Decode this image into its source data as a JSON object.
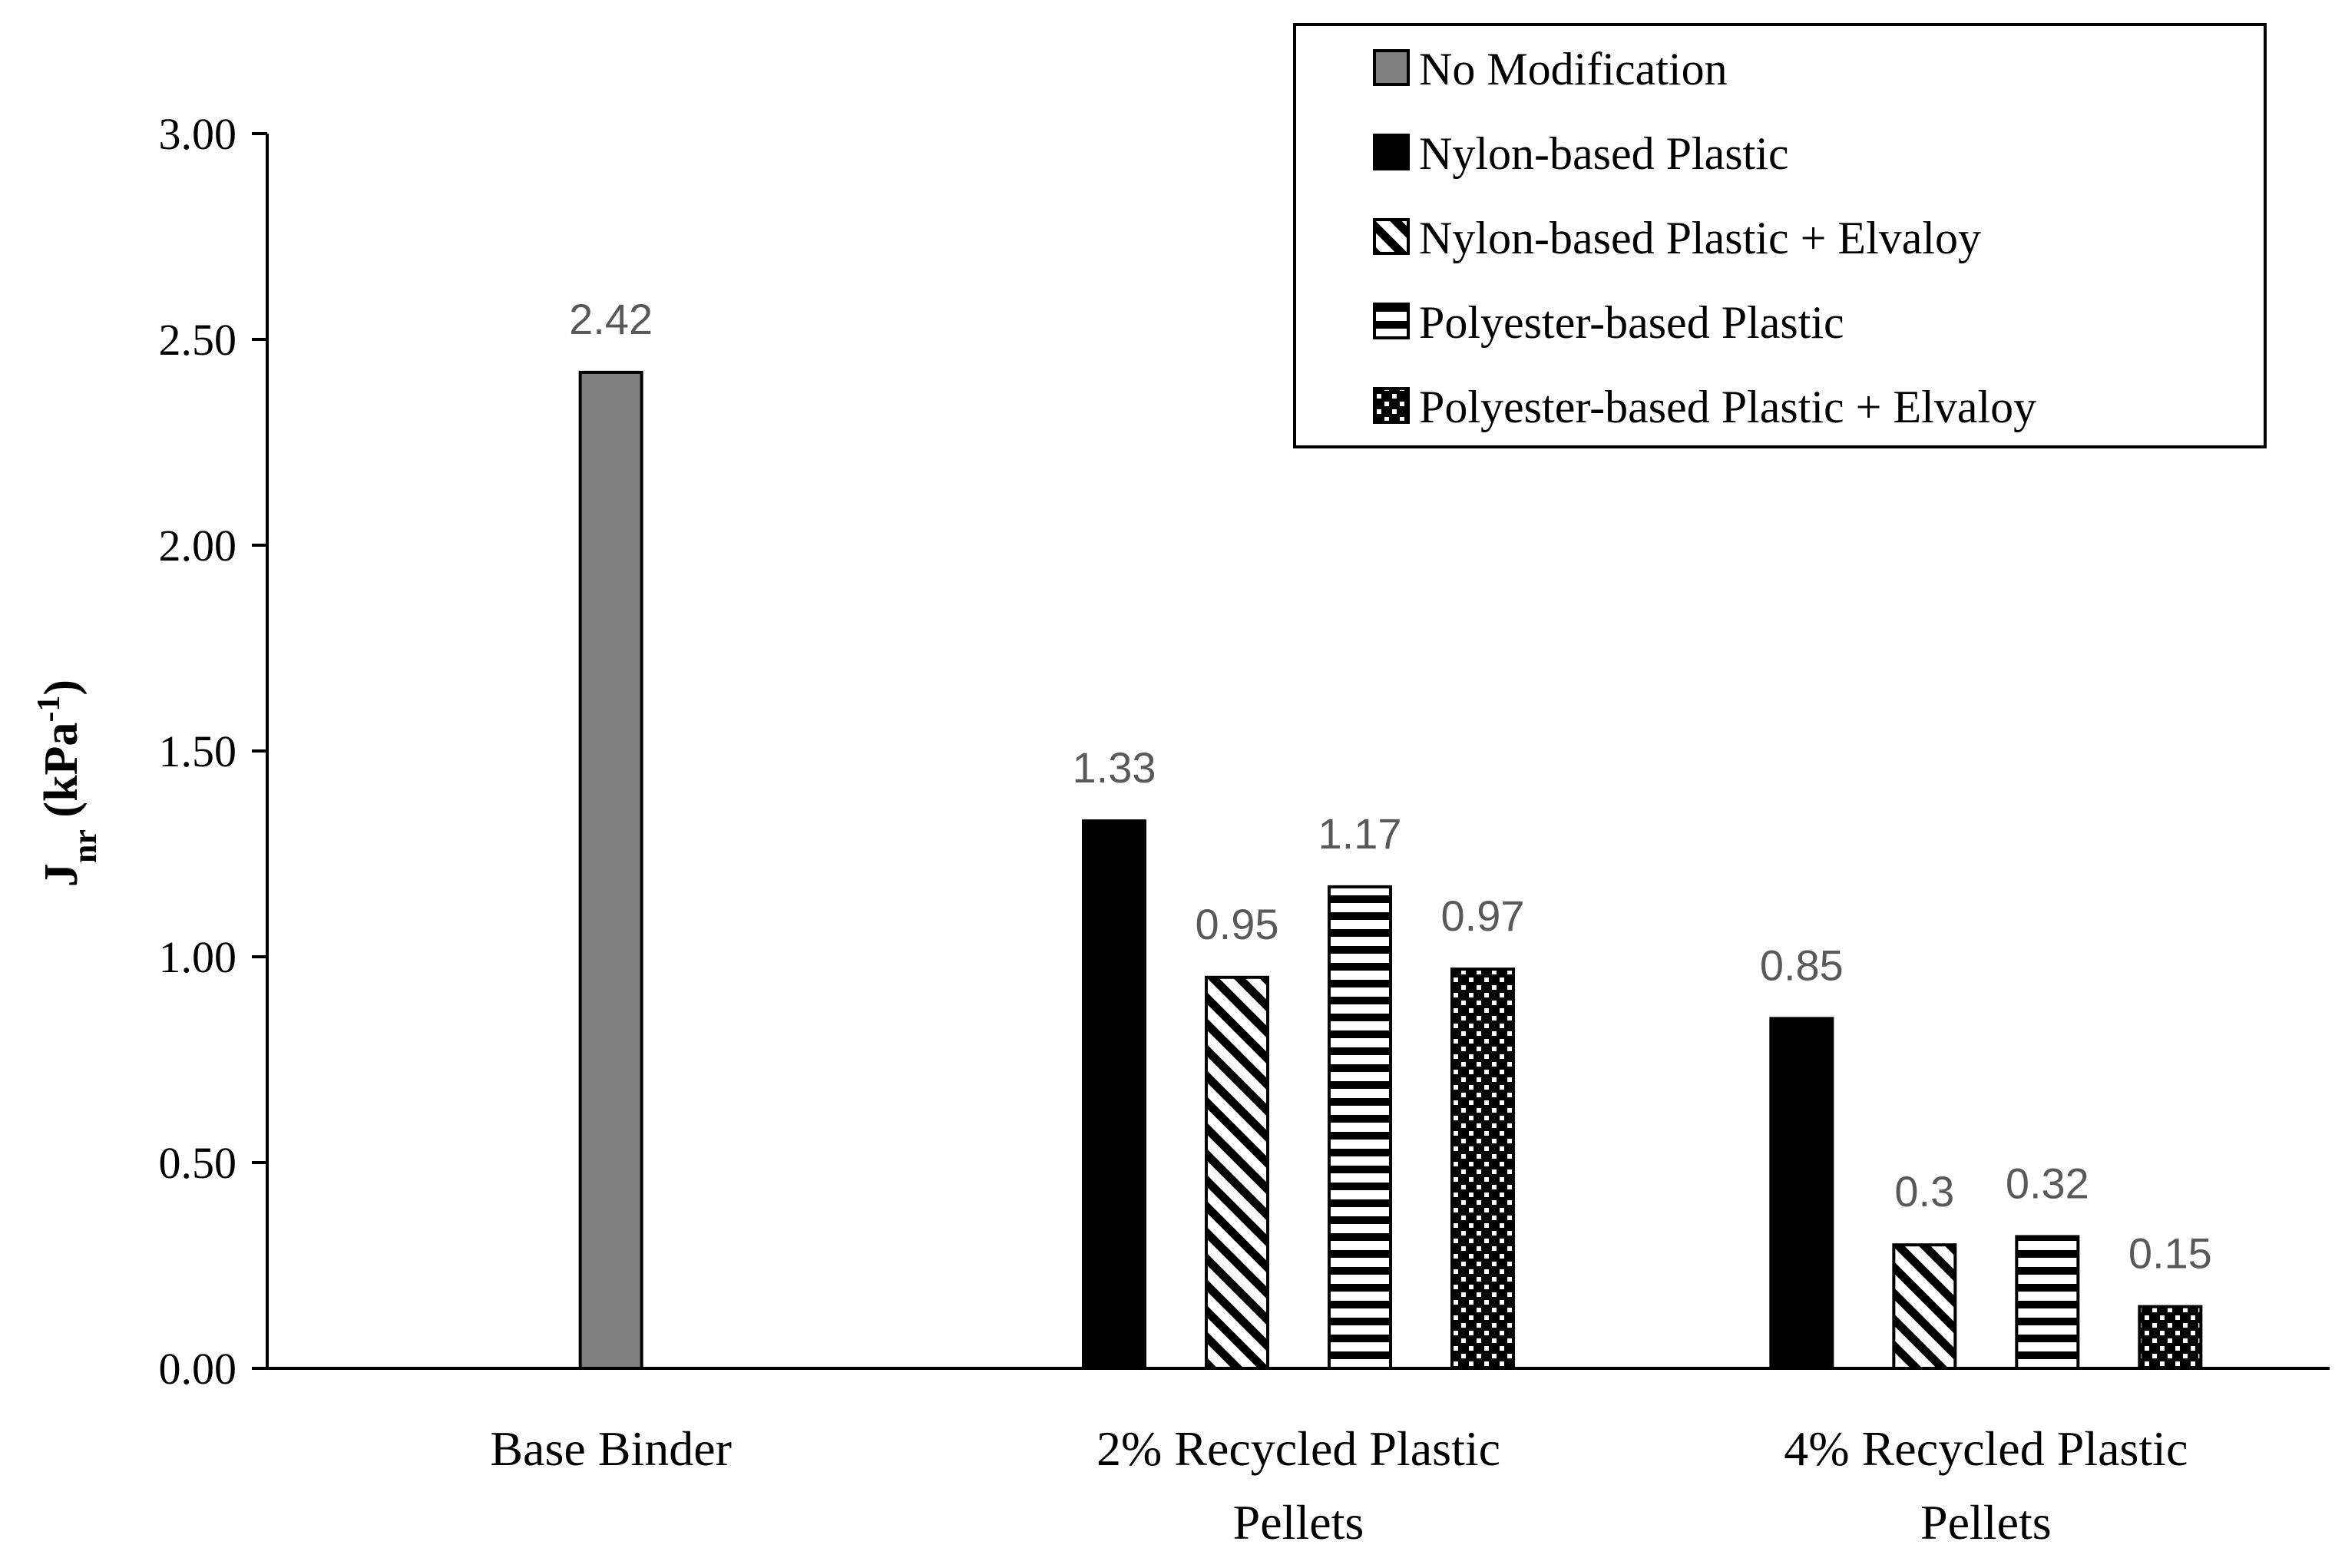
{
  "chart_data": {
    "type": "bar",
    "categories": [
      [
        "Base Binder"
      ],
      [
        "2% Recycled Plastic",
        "Pellets"
      ],
      [
        "4% Recycled Plastic",
        "Pellets"
      ]
    ],
    "series": [
      {
        "name": "No Modification",
        "pattern": "gray",
        "values": [
          2.42,
          null,
          null
        ],
        "labels": [
          "2.42",
          null,
          null
        ]
      },
      {
        "name": "Nylon-based Plastic",
        "pattern": "solid",
        "values": [
          null,
          1.33,
          0.85
        ],
        "labels": [
          null,
          "1.33",
          "0.85"
        ]
      },
      {
        "name": "Nylon-based Plastic + Elvaloy",
        "pattern": "diagonal",
        "values": [
          null,
          0.95,
          0.3
        ],
        "labels": [
          null,
          "0.95",
          "0.3"
        ]
      },
      {
        "name": "Polyester-based Plastic",
        "pattern": "horizontal",
        "values": [
          null,
          1.17,
          0.32
        ],
        "labels": [
          null,
          "1.17",
          "0.32"
        ]
      },
      {
        "name": "Polyester-based Plastic + Elvaloy",
        "pattern": "dots",
        "values": [
          null,
          0.97,
          0.15
        ],
        "labels": [
          null,
          "0.97",
          "0.15"
        ]
      }
    ],
    "ylabel": {
      "main": "J",
      "sub": "nr",
      "unit_open": " (kPa",
      "sup": "-1",
      "unit_close": ")"
    },
    "yticks": [
      "0.00",
      "0.50",
      "1.00",
      "1.50",
      "2.00",
      "2.50",
      "3.00"
    ],
    "ylim": [
      0,
      3
    ],
    "legend_position": "top-right",
    "grid": false,
    "colors": {
      "gray": "#7f7f7f",
      "black": "#000000",
      "label": "#595959"
    }
  }
}
